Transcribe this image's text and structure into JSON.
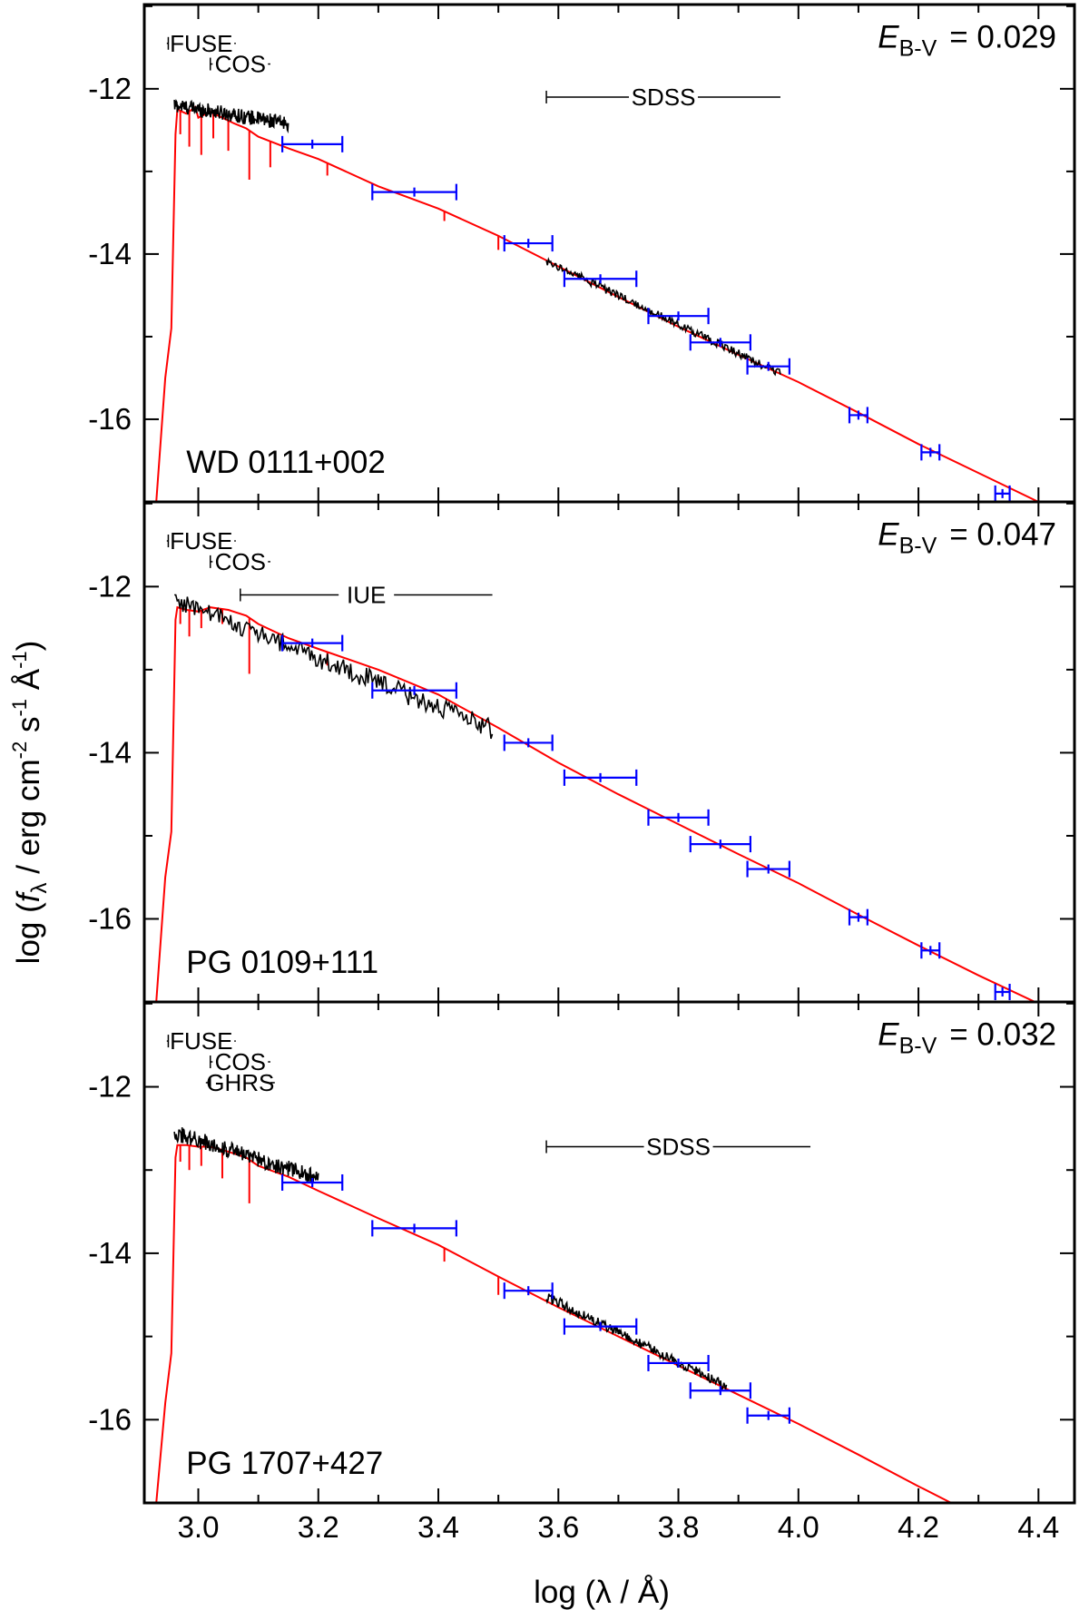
{
  "chart_data": {
    "type": "line",
    "title": "",
    "xlabel": "log (λ / Å)",
    "ylabel": "log (fλ / erg cm⁻² s⁻¹ Å⁻¹)",
    "ylabel_parts": {
      "pre": "log (",
      "f": "f",
      "lambda": "λ",
      "mid1": " / erg cm",
      "exp1": "-2",
      "mid2": " s",
      "exp2": "-1",
      "mid3": " Å",
      "exp3": "-1",
      "post": ")"
    },
    "xlim": [
      2.91,
      4.46
    ],
    "ylim": [
      -17.0,
      -10.98
    ],
    "x_ticks": [
      "3.0",
      "3.2",
      "3.4",
      "3.6",
      "3.8",
      "4.0",
      "4.2",
      "4.4"
    ],
    "y_ticks": [
      "-12",
      "-14",
      "-16"
    ],
    "legend": "none",
    "series_styles": [
      {
        "name": "model spectrum",
        "color": "#ff0000"
      },
      {
        "name": "observed spectra",
        "color": "#000000"
      },
      {
        "name": "photometry",
        "color": "#0000ff"
      }
    ],
    "panels": [
      {
        "star": "WD 0111+002",
        "ebv_label": "E",
        "ebv_sub": "B-V",
        "ebv_value": "= 0.029",
        "instruments": [
          {
            "name": "FUSE",
            "x1": 2.95,
            "x2": 3.06,
            "y": -11.45
          },
          {
            "name": "COS",
            "x1": 3.02,
            "x2": 3.12,
            "y": -11.7
          },
          {
            "name": "SDSS",
            "x1": 3.58,
            "x2": 3.97,
            "y": -12.1
          }
        ],
        "model": [
          [
            2.93,
            -17.0
          ],
          [
            2.945,
            -15.5
          ],
          [
            2.955,
            -14.9
          ],
          [
            2.962,
            -12.55
          ],
          [
            2.965,
            -12.25
          ],
          [
            2.98,
            -12.3
          ],
          [
            2.995,
            -12.22
          ],
          [
            3.0,
            -12.35
          ],
          [
            3.02,
            -12.28
          ],
          [
            3.04,
            -12.35
          ],
          [
            3.06,
            -12.42
          ],
          [
            3.08,
            -12.48
          ],
          [
            3.1,
            -12.58
          ],
          [
            3.15,
            -12.72
          ],
          [
            3.2,
            -12.85
          ],
          [
            3.3,
            -13.18
          ],
          [
            3.4,
            -13.45
          ],
          [
            3.5,
            -13.78
          ],
          [
            3.6,
            -14.15
          ],
          [
            3.7,
            -14.52
          ],
          [
            3.8,
            -14.88
          ],
          [
            3.9,
            -15.22
          ],
          [
            4.0,
            -15.55
          ],
          [
            4.1,
            -15.92
          ],
          [
            4.2,
            -16.3
          ],
          [
            4.3,
            -16.65
          ],
          [
            4.4,
            -17.0
          ]
        ],
        "model_lines": [
          [
            2.97,
            -12.55
          ],
          [
            2.985,
            -12.7
          ],
          [
            3.005,
            -12.8
          ],
          [
            3.025,
            -12.6
          ],
          [
            3.05,
            -12.75
          ],
          [
            3.085,
            -13.1
          ],
          [
            3.12,
            -12.95
          ],
          [
            3.215,
            -13.05
          ],
          [
            3.41,
            -13.6
          ],
          [
            3.5,
            -13.95
          ]
        ],
        "observed": [
          {
            "x1": 2.96,
            "x2": 3.15,
            "y1": -12.2,
            "y2": -12.42,
            "noise": 0.09
          },
          {
            "x1": 3.58,
            "x2": 3.97,
            "y1": -14.08,
            "y2": -15.45,
            "noise": 0.05
          }
        ],
        "photometry": [
          {
            "x": 3.19,
            "y": -12.67,
            "xerr": 0.05
          },
          {
            "x": 3.36,
            "y": -13.25,
            "xerr": 0.07
          },
          {
            "x": 3.55,
            "y": -13.87,
            "xerr": 0.04
          },
          {
            "x": 3.67,
            "y": -14.3,
            "xerr": 0.06
          },
          {
            "x": 3.8,
            "y": -14.75,
            "xerr": 0.05
          },
          {
            "x": 3.87,
            "y": -15.07,
            "xerr": 0.05
          },
          {
            "x": 3.95,
            "y": -15.36,
            "xerr": 0.035
          },
          {
            "x": 4.1,
            "y": -15.95,
            "xerr": 0.015
          },
          {
            "x": 4.22,
            "y": -16.4,
            "xerr": 0.015
          },
          {
            "x": 4.34,
            "y": -16.9,
            "xerr": 0.012
          }
        ]
      },
      {
        "star": "PG 0109+111",
        "ebv_label": "E",
        "ebv_sub": "B-V",
        "ebv_value": "= 0.047",
        "instruments": [
          {
            "name": "FUSE",
            "x1": 2.95,
            "x2": 3.06,
            "y": -11.45
          },
          {
            "name": "COS",
            "x1": 3.02,
            "x2": 3.12,
            "y": -11.7
          },
          {
            "name": "IUE",
            "x1": 3.07,
            "x2": 3.49,
            "y": -12.1
          }
        ],
        "model": [
          [
            2.93,
            -17.0
          ],
          [
            2.945,
            -15.5
          ],
          [
            2.955,
            -14.95
          ],
          [
            2.962,
            -12.4
          ],
          [
            2.965,
            -12.25
          ],
          [
            2.98,
            -12.28
          ],
          [
            3.0,
            -12.3
          ],
          [
            3.02,
            -12.25
          ],
          [
            3.05,
            -12.28
          ],
          [
            3.08,
            -12.35
          ],
          [
            3.1,
            -12.45
          ],
          [
            3.15,
            -12.62
          ],
          [
            3.2,
            -12.75
          ],
          [
            3.3,
            -13.0
          ],
          [
            3.4,
            -13.3
          ],
          [
            3.5,
            -13.7
          ],
          [
            3.6,
            -14.12
          ],
          [
            3.7,
            -14.5
          ],
          [
            3.8,
            -14.86
          ],
          [
            3.9,
            -15.22
          ],
          [
            4.0,
            -15.57
          ],
          [
            4.1,
            -15.95
          ],
          [
            4.2,
            -16.32
          ],
          [
            4.3,
            -16.68
          ],
          [
            4.4,
            -17.02
          ]
        ],
        "model_lines": [
          [
            2.97,
            -12.45
          ],
          [
            2.985,
            -12.6
          ],
          [
            3.005,
            -12.5
          ],
          [
            3.04,
            -12.45
          ],
          [
            3.085,
            -13.05
          ],
          [
            3.215,
            -12.95
          ]
        ],
        "observed": [
          {
            "x1": 2.96,
            "x2": 3.49,
            "y1": -12.15,
            "y2": -13.72,
            "noise": 0.12
          }
        ],
        "photometry": [
          {
            "x": 3.19,
            "y": -12.68,
            "xerr": 0.05
          },
          {
            "x": 3.36,
            "y": -13.25,
            "xerr": 0.07
          },
          {
            "x": 3.55,
            "y": -13.88,
            "xerr": 0.04
          },
          {
            "x": 3.67,
            "y": -14.3,
            "xerr": 0.06
          },
          {
            "x": 3.8,
            "y": -14.78,
            "xerr": 0.05
          },
          {
            "x": 3.87,
            "y": -15.1,
            "xerr": 0.05
          },
          {
            "x": 3.95,
            "y": -15.4,
            "xerr": 0.035
          },
          {
            "x": 4.1,
            "y": -15.98,
            "xerr": 0.015
          },
          {
            "x": 4.22,
            "y": -16.38,
            "xerr": 0.015
          },
          {
            "x": 4.34,
            "y": -16.88,
            "xerr": 0.012
          }
        ]
      },
      {
        "star": "PG 1707+427",
        "ebv_label": "E",
        "ebv_sub": "B-V",
        "ebv_value": "= 0.032",
        "instruments": [
          {
            "name": "FUSE",
            "x1": 2.95,
            "x2": 3.06,
            "y": -11.45
          },
          {
            "name": "COS",
            "x1": 3.02,
            "x2": 3.12,
            "y": -11.7
          },
          {
            "name": "GHRS",
            "x1": 3.02,
            "x2": 3.12,
            "y": -11.95
          },
          {
            "name": "SDSS",
            "x1": 3.58,
            "x2": 4.02,
            "y": -12.72
          }
        ],
        "model": [
          [
            2.93,
            -17.0
          ],
          [
            2.945,
            -15.8
          ],
          [
            2.955,
            -15.2
          ],
          [
            2.962,
            -12.85
          ],
          [
            2.965,
            -12.7
          ],
          [
            2.98,
            -12.7
          ],
          [
            3.0,
            -12.72
          ],
          [
            3.02,
            -12.72
          ],
          [
            3.05,
            -12.78
          ],
          [
            3.08,
            -12.85
          ],
          [
            3.1,
            -12.95
          ],
          [
            3.15,
            -13.08
          ],
          [
            3.2,
            -13.25
          ],
          [
            3.3,
            -13.58
          ],
          [
            3.4,
            -13.9
          ],
          [
            3.5,
            -14.28
          ],
          [
            3.6,
            -14.65
          ],
          [
            3.7,
            -15.0
          ],
          [
            3.8,
            -15.35
          ],
          [
            3.9,
            -15.7
          ],
          [
            4.0,
            -16.05
          ],
          [
            4.1,
            -16.42
          ],
          [
            4.2,
            -16.8
          ],
          [
            4.26,
            -17.02
          ]
        ],
        "model_lines": [
          [
            2.97,
            -12.9
          ],
          [
            2.985,
            -13.0
          ],
          [
            3.005,
            -12.95
          ],
          [
            3.04,
            -13.1
          ],
          [
            3.085,
            -13.4
          ],
          [
            3.41,
            -14.1
          ],
          [
            3.5,
            -14.5
          ]
        ],
        "observed": [
          {
            "x1": 2.96,
            "x2": 3.2,
            "y1": -12.55,
            "y2": -13.1,
            "noise": 0.1
          },
          {
            "x1": 3.58,
            "x2": 3.88,
            "y1": -14.52,
            "y2": -15.6,
            "noise": 0.06
          }
        ],
        "photometry": [
          {
            "x": 3.19,
            "y": -13.15,
            "xerr": 0.05
          },
          {
            "x": 3.36,
            "y": -13.7,
            "xerr": 0.07
          },
          {
            "x": 3.55,
            "y": -14.45,
            "xerr": 0.04
          },
          {
            "x": 3.67,
            "y": -14.88,
            "xerr": 0.06
          },
          {
            "x": 3.8,
            "y": -15.32,
            "xerr": 0.05
          },
          {
            "x": 3.87,
            "y": -15.65,
            "xerr": 0.05
          },
          {
            "x": 3.95,
            "y": -15.95,
            "xerr": 0.035
          }
        ]
      }
    ]
  }
}
